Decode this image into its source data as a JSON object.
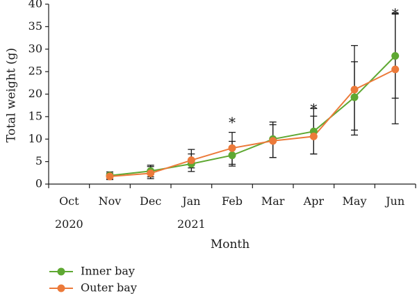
{
  "chart_data": {
    "type": "line",
    "xlabel": "Month",
    "ylabel": "Total weight (g)",
    "ylim": [
      0,
      40
    ],
    "yticks": [
      "0",
      "5",
      "10",
      "15",
      "20",
      "25",
      "30",
      "35",
      "40"
    ],
    "categories": [
      "Oct",
      "Nov",
      "Dec",
      "Jan",
      "Feb",
      "Mar",
      "Apr",
      "May",
      "Jun"
    ],
    "year_labels": [
      {
        "category": "Oct",
        "text": "2020"
      },
      {
        "category": "Jan",
        "text": "2021"
      }
    ],
    "grid": false,
    "legend_position": "bottom-left",
    "series": [
      {
        "name": "Inner bay",
        "color": "#5ea832",
        "values": [
          null,
          1.9,
          2.9,
          4.5,
          6.4,
          10.0,
          11.7,
          19.3,
          28.5
        ],
        "err_high": [
          null,
          2.7,
          4.2,
          6.7,
          9.5,
          13.8,
          16.8,
          30.8,
          37.8
        ],
        "err_low": [
          null,
          1.1,
          1.6,
          2.8,
          4.4,
          5.9,
          6.7,
          10.9,
          19.1
        ]
      },
      {
        "name": "Outer bay",
        "color": "#ec7a3a",
        "values": [
          null,
          1.7,
          2.4,
          5.3,
          8.0,
          9.6,
          10.6,
          21.0,
          25.5
        ],
        "err_high": [
          null,
          2.4,
          3.9,
          7.7,
          11.5,
          13.2,
          15.1,
          27.2,
          38.0
        ],
        "err_low": [
          null,
          1.0,
          1.2,
          3.6,
          4.0,
          5.9,
          6.7,
          12.0,
          13.4
        ]
      }
    ],
    "significance_markers": [
      {
        "category": "Feb",
        "text": "*",
        "y": 14.2
      },
      {
        "category": "Apr",
        "text": "*",
        "y": 17.2
      },
      {
        "category": "Jun",
        "text": "*",
        "y": 38.4
      }
    ]
  }
}
